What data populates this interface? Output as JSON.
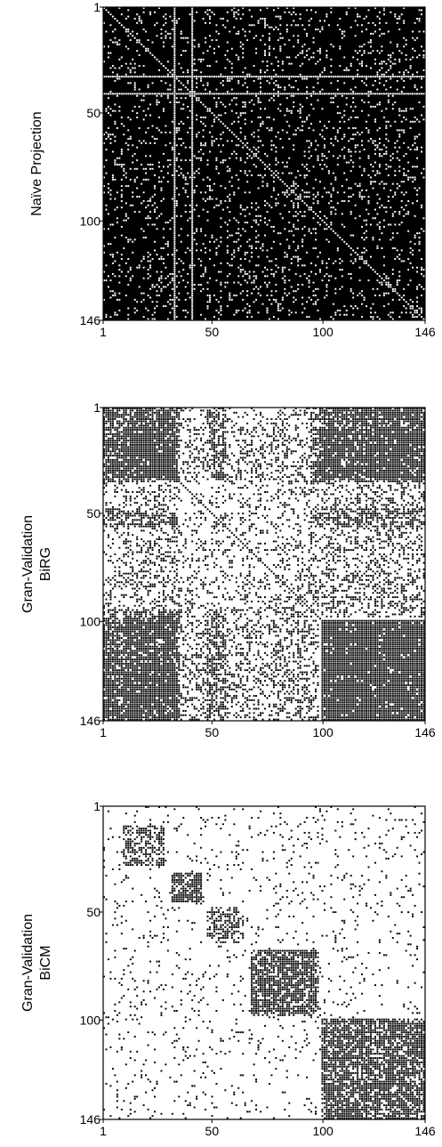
{
  "chart_data": [
    {
      "type": "heatmap",
      "ylabel": [
        "Naïve Projection"
      ],
      "size": 146,
      "xticks": [
        1,
        50,
        100,
        146
      ],
      "yticks": [
        1,
        50,
        100,
        146
      ],
      "xlim": [
        1,
        146
      ],
      "ylim": [
        146,
        1
      ],
      "background_color": "#000000",
      "mark_color": "#ffffff",
      "diagonal": true,
      "description": "dense matrix; white marks indicate absent links",
      "full_rows": [
        41
      ],
      "full_cols": [
        33,
        41
      ],
      "blocks": [
        {
          "rows": [
            1,
            146
          ],
          "cols": [
            1,
            146
          ],
          "density": 0.06
        }
      ]
    },
    {
      "type": "heatmap",
      "ylabel": [
        "Gran-Validation",
        "BiRG"
      ],
      "size": 146,
      "xticks": [
        1,
        50,
        100,
        146
      ],
      "yticks": [
        1,
        50,
        100,
        146
      ],
      "xlim": [
        1,
        146
      ],
      "ylim": [
        146,
        1
      ],
      "background_color": "#ffffff",
      "mark_color": "#000000",
      "diagonal": true,
      "full_rows": [],
      "full_cols": [],
      "blocks": [
        {
          "rows": [
            1,
            8
          ],
          "cols": [
            1,
            34
          ],
          "density": 0.55
        },
        {
          "rows": [
            1,
            8
          ],
          "cols": [
            95,
            146
          ],
          "density": 0.55
        },
        {
          "rows": [
            1,
            8
          ],
          "cols": [
            36,
            95
          ],
          "density": 0.15
        },
        {
          "rows": [
            10,
            35
          ],
          "cols": [
            1,
            34
          ],
          "density": 0.7
        },
        {
          "rows": [
            10,
            35
          ],
          "cols": [
            95,
            146
          ],
          "density": 0.65
        },
        {
          "rows": [
            10,
            35
          ],
          "cols": [
            36,
            95
          ],
          "density": 0.2
        },
        {
          "rows": [
            36,
            75
          ],
          "cols": [
            1,
            146
          ],
          "density": 0.08
        },
        {
          "rows": [
            48,
            56
          ],
          "cols": [
            1,
            34
          ],
          "density": 0.45
        },
        {
          "rows": [
            48,
            56
          ],
          "cols": [
            95,
            146
          ],
          "density": 0.4
        },
        {
          "rows": [
            78,
            98
          ],
          "cols": [
            1,
            146
          ],
          "density": 0.15
        },
        {
          "rows": [
            100,
            146
          ],
          "cols": [
            1,
            34
          ],
          "density": 0.7
        },
        {
          "rows": [
            100,
            146
          ],
          "cols": [
            100,
            146
          ],
          "density": 0.75
        },
        {
          "rows": [
            100,
            146
          ],
          "cols": [
            36,
            98
          ],
          "density": 0.25
        }
      ]
    },
    {
      "type": "heatmap",
      "ylabel": [
        "Gran-Validation",
        "BiCM"
      ],
      "size": 146,
      "xticks": [
        1,
        50,
        100,
        146
      ],
      "yticks": [
        1,
        50,
        100,
        146
      ],
      "xlim": [
        1,
        146
      ],
      "ylim": [
        146,
        1
      ],
      "background_color": "#ffffff",
      "mark_color": "#000000",
      "diagonal": false,
      "full_rows": [],
      "full_cols": [],
      "blocks": [
        {
          "rows": [
            10,
            28
          ],
          "cols": [
            10,
            28
          ],
          "density": 0.3
        },
        {
          "rows": [
            32,
            45
          ],
          "cols": [
            32,
            45
          ],
          "density": 0.55
        },
        {
          "rows": [
            50,
            64
          ],
          "cols": [
            48,
            62
          ],
          "density": 0.45
        },
        {
          "rows": [
            68,
            96
          ],
          "cols": [
            68,
            98
          ],
          "density": 0.55
        },
        {
          "rows": [
            100,
            146
          ],
          "cols": [
            100,
            146
          ],
          "density": 0.5
        },
        {
          "rows": [
            1,
            146
          ],
          "cols": [
            1,
            146
          ],
          "density": 0.025
        }
      ]
    }
  ]
}
